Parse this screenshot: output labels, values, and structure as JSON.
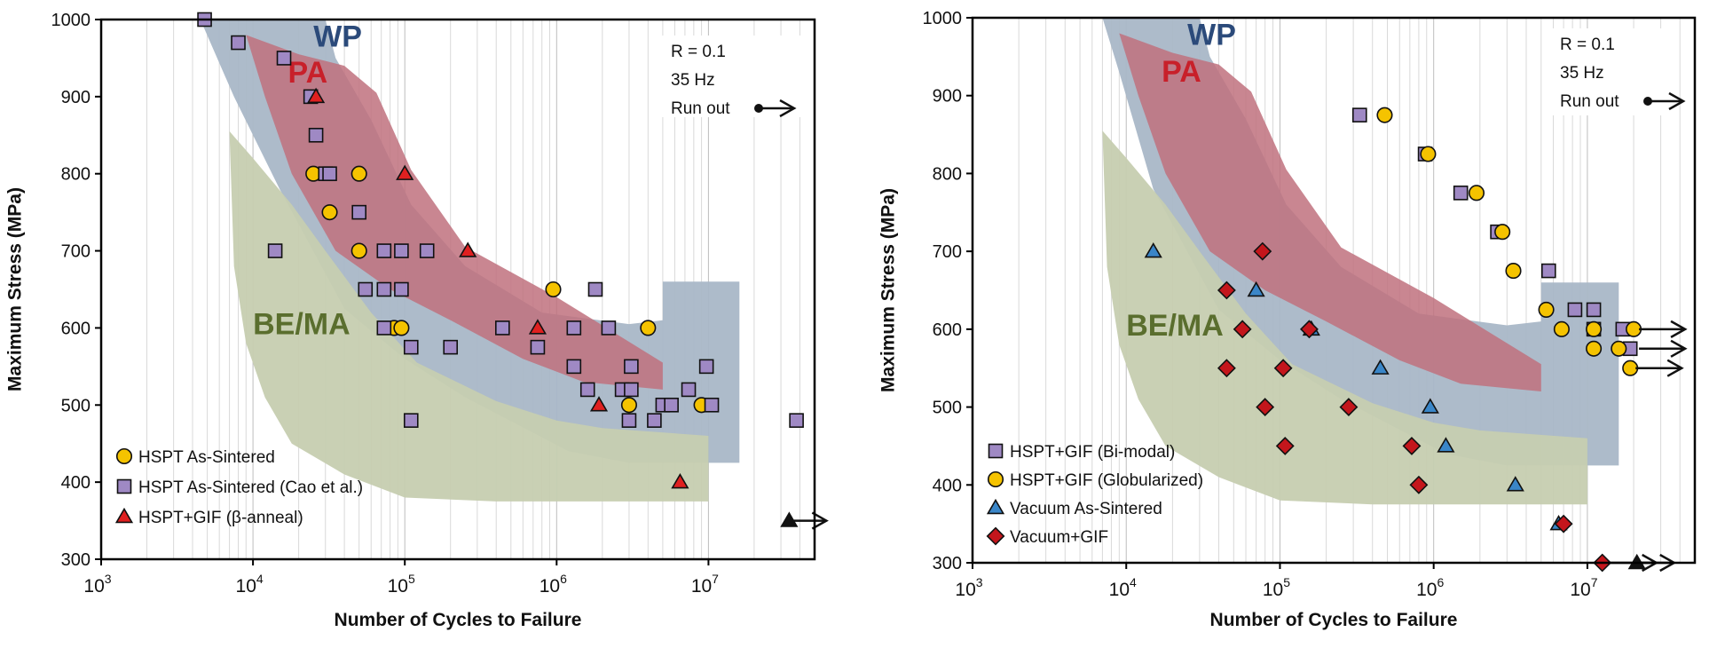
{
  "chart_data": [
    {
      "type": "scatter",
      "xlabel": "Number of Cycles to Failure",
      "ylabel": "Maximum Stress (MPa)",
      "x_scale": "log",
      "xlim": [
        1000,
        50000000
      ],
      "ylim": [
        300,
        1000
      ],
      "x_ticks": [
        {
          "value": 1000,
          "base": "10",
          "exp": "3"
        },
        {
          "value": 10000,
          "base": "10",
          "exp": "4"
        },
        {
          "value": 100000,
          "base": "10",
          "exp": "5"
        },
        {
          "value": 1000000,
          "base": "10",
          "exp": "6"
        },
        {
          "value": 10000000,
          "base": "10",
          "exp": "7"
        }
      ],
      "y_ticks": [
        "300",
        "400",
        "500",
        "600",
        "700",
        "800",
        "900",
        "1000"
      ],
      "grid": "vertical minor lines",
      "info_text": [
        "R = 0.1",
        "35 Hz",
        "Run out"
      ],
      "regions": [
        {
          "label": "WP",
          "color": "#a9b7c7",
          "label_color": "#2b4a7a",
          "label_at": [
            25000,
            965
          ],
          "polygon": [
            [
              4500,
              1000
            ],
            [
              30000,
              1000
            ],
            [
              35000,
              950
            ],
            [
              60000,
              870
            ],
            [
              110000,
              760
            ],
            [
              250000,
              680
            ],
            [
              800000,
              620
            ],
            [
              3000000,
              605
            ],
            [
              5000000,
              610
            ],
            [
              5000000,
              660
            ],
            [
              16000000,
              660
            ],
            [
              16000000,
              425
            ],
            [
              3000000,
              425
            ],
            [
              1200000,
              440
            ],
            [
              250000,
              510
            ],
            [
              100000,
              560
            ],
            [
              40000,
              625
            ],
            [
              15000,
              780
            ],
            [
              7500,
              900
            ]
          ]
        },
        {
          "label": "PA",
          "color": "#c0717e",
          "label_color": "#c8202a",
          "label_at": [
            17000,
            918
          ],
          "polygon": [
            [
              9000,
              980
            ],
            [
              20000,
              955
            ],
            [
              40000,
              940
            ],
            [
              65000,
              905
            ],
            [
              110000,
              805
            ],
            [
              250000,
              705
            ],
            [
              1000000,
              640
            ],
            [
              5000000,
              555
            ],
            [
              5000000,
              520
            ],
            [
              1500000,
              530
            ],
            [
              600000,
              560
            ],
            [
              200000,
              610
            ],
            [
              80000,
              650
            ],
            [
              35000,
              700
            ],
            [
              18000,
              800
            ],
            [
              12000,
              900
            ]
          ]
        },
        {
          "label": "BE/MA",
          "color": "#c6cdb0",
          "label_color": "#5a6e2e",
          "label_at": [
            10000,
            592
          ],
          "polygon": [
            [
              7000,
              855
            ],
            [
              10000,
              820
            ],
            [
              18000,
              760
            ],
            [
              30000,
              700
            ],
            [
              60000,
              620
            ],
            [
              120000,
              555
            ],
            [
              400000,
              505
            ],
            [
              1000000,
              480
            ],
            [
              2000000,
              470
            ],
            [
              10000000,
              460
            ],
            [
              10000000,
              375
            ],
            [
              1000000,
              375
            ],
            [
              400000,
              375
            ],
            [
              100000,
              380
            ],
            [
              40000,
              410
            ],
            [
              18000,
              450
            ],
            [
              12000,
              510
            ],
            [
              9000,
              580
            ],
            [
              7500,
              680
            ]
          ]
        }
      ],
      "series": [
        {
          "name": "HSPT As-Sintered",
          "marker": "circle",
          "color": "#f5c300",
          "points": [
            [
              25000,
              800
            ],
            [
              32000,
              750
            ],
            [
              50000,
              800
            ],
            [
              50000,
              700
            ],
            [
              85000,
              600
            ],
            [
              95000,
              600
            ],
            [
              950000,
              650
            ],
            [
              3000000,
              500
            ],
            [
              4000000,
              600
            ],
            [
              9000000,
              500
            ]
          ]
        },
        {
          "name": "HSPT As-Sintered (Cao et al.)",
          "marker": "square",
          "color": "#9f89c4",
          "points": [
            [
              4800,
              1000
            ],
            [
              8000,
              970
            ],
            [
              16000,
              950
            ],
            [
              24000,
              900
            ],
            [
              26000,
              850
            ],
            [
              30000,
              800
            ],
            [
              32000,
              800
            ],
            [
              14000,
              700
            ],
            [
              50000,
              750
            ],
            [
              55000,
              650
            ],
            [
              73000,
              700
            ],
            [
              73000,
              650
            ],
            [
              73000,
              600
            ],
            [
              95000,
              700
            ],
            [
              95000,
              650
            ],
            [
              110000,
              575
            ],
            [
              140000,
              700
            ],
            [
              200000,
              575
            ],
            [
              440000,
              600
            ],
            [
              750000,
              575
            ],
            [
              1300000,
              600
            ],
            [
              1300000,
              550
            ],
            [
              1800000,
              650
            ],
            [
              1600000,
              520
            ],
            [
              2200000,
              600
            ],
            [
              2700000,
              520
            ],
            [
              3100000,
              550
            ],
            [
              3100000,
              520
            ],
            [
              3000000,
              480
            ],
            [
              4400000,
              480
            ],
            [
              5000000,
              500
            ],
            [
              5700000,
              500
            ],
            [
              7400000,
              520
            ],
            [
              9700000,
              550
            ],
            [
              10500000,
              500
            ],
            [
              110000,
              480
            ],
            [
              38000000,
              480
            ]
          ]
        },
        {
          "name": "HSPT+GIF (β-anneal)",
          "marker": "triangle",
          "color": "#e02020",
          "points": [
            [
              26000,
              900
            ],
            [
              100000,
              800
            ],
            [
              260000,
              700
            ],
            [
              750000,
              600
            ],
            [
              1900000,
              500
            ],
            [
              6500000,
              400
            ]
          ]
        },
        {
          "name": "",
          "marker": "triangle",
          "color": "#111111",
          "runout": true,
          "points": [
            [
              34000000,
              350
            ]
          ]
        }
      ],
      "legend": "bottom-left"
    },
    {
      "type": "scatter",
      "xlabel": "Number of Cycles to Failure",
      "ylabel": "Maximum Stress (MPa)",
      "x_scale": "log",
      "xlim": [
        1000,
        50000000
      ],
      "ylim": [
        300,
        1000
      ],
      "x_ticks": [
        {
          "value": 1000,
          "base": "10",
          "exp": "3"
        },
        {
          "value": 10000,
          "base": "10",
          "exp": "4"
        },
        {
          "value": 100000,
          "base": "10",
          "exp": "5"
        },
        {
          "value": 1000000,
          "base": "10",
          "exp": "6"
        },
        {
          "value": 10000000,
          "base": "10",
          "exp": "7"
        }
      ],
      "y_ticks": [
        "300",
        "400",
        "500",
        "600",
        "700",
        "800",
        "900",
        "1000"
      ],
      "grid": "vertical minor lines",
      "info_text": [
        "R = 0.1",
        "35 Hz",
        "Run out"
      ],
      "regions": [
        {
          "label": "WP",
          "color": "#a9b7c7",
          "label_color": "#2b4a7a",
          "label_at": [
            25000,
            965
          ],
          "polygon": [
            [
              7000,
              1000
            ],
            [
              30000,
              1000
            ],
            [
              35000,
              950
            ],
            [
              60000,
              870
            ],
            [
              110000,
              760
            ],
            [
              250000,
              680
            ],
            [
              800000,
              620
            ],
            [
              3000000,
              605
            ],
            [
              5000000,
              610
            ],
            [
              5000000,
              660
            ],
            [
              16000000,
              660
            ],
            [
              16000000,
              425
            ],
            [
              3000000,
              425
            ],
            [
              1200000,
              440
            ],
            [
              250000,
              510
            ],
            [
              100000,
              560
            ],
            [
              40000,
              625
            ],
            [
              15000,
              780
            ],
            [
              9000,
              930
            ]
          ]
        },
        {
          "label": "PA",
          "color": "#c0717e",
          "label_color": "#c8202a",
          "label_at": [
            17000,
            918
          ],
          "polygon": [
            [
              9000,
              980
            ],
            [
              20000,
              955
            ],
            [
              40000,
              940
            ],
            [
              65000,
              905
            ],
            [
              110000,
              805
            ],
            [
              250000,
              705
            ],
            [
              1000000,
              640
            ],
            [
              5000000,
              555
            ],
            [
              5000000,
              520
            ],
            [
              1500000,
              530
            ],
            [
              600000,
              560
            ],
            [
              200000,
              610
            ],
            [
              80000,
              650
            ],
            [
              35000,
              700
            ],
            [
              18000,
              800
            ],
            [
              12000,
              900
            ]
          ]
        },
        {
          "label": "BE/MA",
          "color": "#c6cdb0",
          "label_color": "#5a6e2e",
          "label_at": [
            10000,
            592
          ],
          "polygon": [
            [
              7000,
              855
            ],
            [
              10000,
              820
            ],
            [
              18000,
              760
            ],
            [
              30000,
              700
            ],
            [
              60000,
              620
            ],
            [
              120000,
              555
            ],
            [
              400000,
              505
            ],
            [
              1000000,
              480
            ],
            [
              2000000,
              470
            ],
            [
              10000000,
              460
            ],
            [
              10000000,
              375
            ],
            [
              1000000,
              375
            ],
            [
              400000,
              375
            ],
            [
              100000,
              380
            ],
            [
              40000,
              410
            ],
            [
              18000,
              450
            ],
            [
              12000,
              510
            ],
            [
              9000,
              580
            ],
            [
              7500,
              680
            ]
          ]
        }
      ],
      "series": [
        {
          "name": "HSPT+GIF (Bi-modal)",
          "marker": "square",
          "color": "#9f89c4",
          "points": [
            [
              330000,
              875
            ],
            [
              880000,
              825
            ],
            [
              1500000,
              775
            ],
            [
              2600000,
              725
            ],
            [
              5600000,
              675
            ],
            [
              8300000,
              625
            ],
            [
              11000000,
              625
            ],
            [
              11000000,
              600
            ],
            [
              17000000,
              600
            ],
            [
              19000000,
              575
            ]
          ]
        },
        {
          "name": "HSPT+GIF (Globularized)",
          "marker": "circle",
          "color": "#f5c300",
          "points": [
            [
              480000,
              875
            ],
            [
              920000,
              825
            ],
            [
              1900000,
              775
            ],
            [
              2800000,
              725
            ],
            [
              3300000,
              675
            ],
            [
              5400000,
              625
            ],
            [
              6800000,
              600
            ],
            [
              11000000,
              600
            ],
            [
              11000000,
              575
            ],
            [
              16000000,
              575
            ],
            [
              20000000,
              600
            ],
            [
              19000000,
              550
            ]
          ]
        },
        {
          "name": "Vacuum As-Sintered",
          "marker": "triangle",
          "color": "#3a86c8",
          "points": [
            [
              15000,
              700
            ],
            [
              70000,
              650
            ],
            [
              160000,
              600
            ],
            [
              450000,
              550
            ],
            [
              950000,
              500
            ],
            [
              1200000,
              450
            ],
            [
              3400000,
              400
            ],
            [
              6500000,
              350
            ]
          ]
        },
        {
          "name": "Vacuum+GIF",
          "marker": "diamond",
          "color": "#c4161c",
          "points": [
            [
              45000,
              650
            ],
            [
              57000,
              600
            ],
            [
              77000,
              700
            ],
            [
              45000,
              550
            ],
            [
              105000,
              550
            ],
            [
              80000,
              500
            ],
            [
              108000,
              450
            ],
            [
              155000,
              600
            ],
            [
              280000,
              500
            ],
            [
              720000,
              450
            ],
            [
              800000,
              400
            ],
            [
              7000000,
              350
            ],
            [
              12500000,
              300
            ]
          ]
        },
        {
          "name": "",
          "marker": "triangle",
          "color": "#111111",
          "runout": true,
          "points": [
            [
              21000000,
              300
            ]
          ]
        }
      ],
      "runout_arrows": [
        [
          20000000,
          600
        ],
        [
          20000000,
          575
        ],
        [
          19000000,
          550
        ],
        [
          13000000,
          300
        ]
      ],
      "legend": "bottom-left"
    }
  ]
}
